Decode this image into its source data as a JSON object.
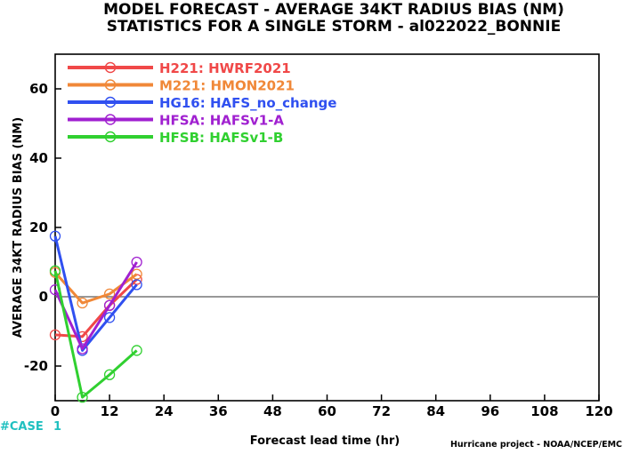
{
  "chart_data": {
    "type": "line",
    "title": "MODEL FORECAST - AVERAGE 34KT RADIUS BIAS (NM)",
    "subtitle": "STATISTICS FOR A SINGLE STORM - al022022_BONNIE",
    "xlabel": "Forecast lead time (hr)",
    "ylabel": "AVERAGE 34KT RADIUS BIAS (NM)",
    "xlim": [
      0,
      120
    ],
    "ylim": [
      -30,
      70
    ],
    "x_ticks": [
      "0",
      "12",
      "24",
      "36",
      "48",
      "60",
      "72",
      "84",
      "96",
      "108",
      "120"
    ],
    "y_ticks": [
      "60",
      "40",
      "20",
      "0",
      "-20"
    ],
    "x_tick_values": [
      0,
      12,
      24,
      36,
      48,
      60,
      72,
      84,
      96,
      108,
      120
    ],
    "y_tick_values": [
      60,
      40,
      20,
      0,
      -20
    ],
    "zero_line": true,
    "grid": false,
    "legend_position": "top-left",
    "x": [
      0,
      6,
      12,
      18
    ],
    "series": [
      {
        "name": "H221: HWRF2021",
        "color": "#f04848",
        "values": [
          -11.0,
          -11.5,
          -2.5,
          5.0
        ]
      },
      {
        "name": "M221: HMON2021",
        "color": "#f08838",
        "values": [
          7.0,
          -1.8,
          0.8,
          6.5
        ]
      },
      {
        "name": "HG16: HAFS_no_change",
        "color": "#3050f0",
        "values": [
          17.5,
          -15.5,
          -6.0,
          3.5
        ]
      },
      {
        "name": "HFSA: HAFSv1-A",
        "color": "#a020d0",
        "values": [
          2.0,
          -15.0,
          -2.5,
          10.0
        ]
      },
      {
        "name": "HFSB: HAFSv1-B",
        "color": "#30d030",
        "values": [
          7.5,
          -29.0,
          -22.5,
          -15.5
        ]
      }
    ],
    "annotations": {
      "case_label": "#CASE",
      "case_count": "1",
      "case_color": "#20c0c0",
      "footer": "Hurricane project - NOAA/NCEP/EMC"
    }
  }
}
